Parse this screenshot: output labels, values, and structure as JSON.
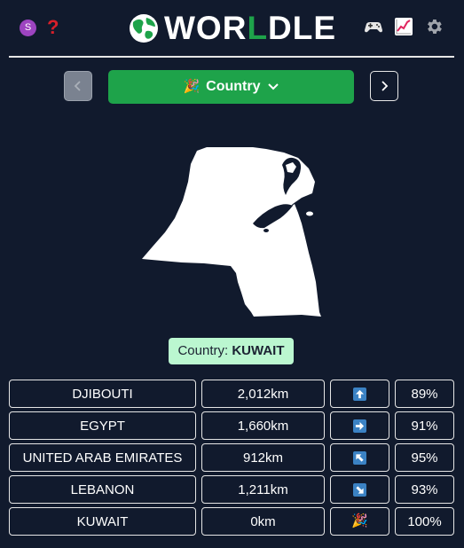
{
  "header": {
    "avatar_letter": "S",
    "help_symbol": "?",
    "title_prefix": "WOR",
    "title_highlight": "L",
    "title_suffix": "DLE",
    "icons": [
      "avatar-icon",
      "help-icon",
      "globe-logo-icon",
      "game-controller-icon",
      "stats-chart-icon",
      "gear-icon"
    ]
  },
  "nav": {
    "mode_label": "Country",
    "mode_icon": "🎉"
  },
  "answer": {
    "prefix": "Country:",
    "country": "KUWAIT"
  },
  "guesses": [
    {
      "country": "DJIBOUTI",
      "distance": "2,012km",
      "direction": "up",
      "proximity": "89%"
    },
    {
      "country": "EGYPT",
      "distance": "1,660km",
      "direction": "right",
      "proximity": "91%"
    },
    {
      "country": "UNITED ARAB EMIRATES",
      "distance": "912km",
      "direction": "up-left",
      "proximity": "95%"
    },
    {
      "country": "LEBANON",
      "distance": "1,211km",
      "direction": "down-right",
      "proximity": "93%"
    },
    {
      "country": "KUWAIT",
      "distance": "0km",
      "direction": "correct",
      "proximity": "100%"
    }
  ],
  "colors": {
    "background": "#111a2d",
    "accent_green": "#1ea34a",
    "answer_bg": "#bbf7d0",
    "direction_blue": "#3b82c4"
  }
}
